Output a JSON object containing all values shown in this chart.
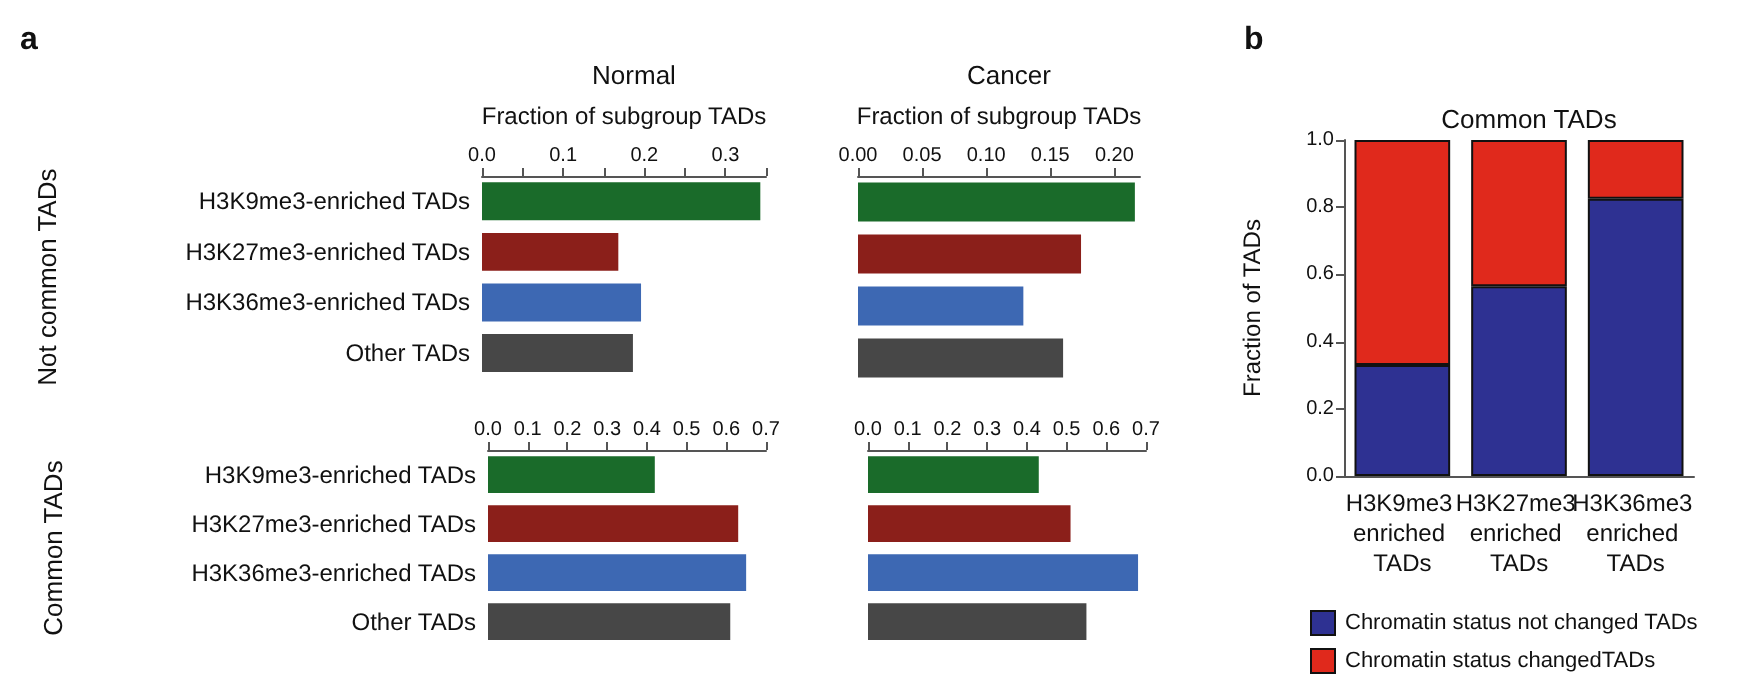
{
  "chart_data": [
    {
      "type": "bar",
      "orientation": "horizontal",
      "title": "Normal",
      "xlabel": "Fraction of subgroup TADs",
      "ylabel": "Not common TADs",
      "annotations": [
        "a"
      ],
      "categories": [
        "H3K9me3-enriched TADs",
        "H3K27me3-enriched TADs",
        "H3K36me3-enriched TADs",
        "Other TADs"
      ],
      "values": [
        0.343,
        0.168,
        0.196,
        0.186
      ],
      "colors": [
        "#1a6b2a",
        "#8b1f1a",
        "#3d68b3",
        "#474747"
      ],
      "xlim": [
        0,
        0.35
      ],
      "xticks": [
        {
          "value": 0,
          "label": "0.0"
        },
        {
          "value": 0.05,
          "label": null
        },
        0.1,
        {
          "value": 0.15,
          "label": null
        },
        0.2,
        {
          "value": 0.25,
          "label": null
        },
        0.3,
        {
          "value": 0.35,
          "label": null
        }
      ],
      "grid": false
    },
    {
      "type": "bar",
      "orientation": "horizontal",
      "title": "Cancer",
      "xlabel": "Fraction of subgroup TADs",
      "tick_labels": "x",
      "categories": [
        "H3K9me3-enriched TADs",
        "H3K27me3-enriched TADs",
        "H3K36me3-enriched TADs",
        "Other TADs"
      ],
      "values": [
        0.216,
        0.174,
        0.129,
        0.16
      ],
      "colors": [
        "#1a6b2a",
        "#8b1f1a",
        "#3d68b3",
        "#474747"
      ],
      "xlim": [
        0,
        0.22
      ],
      "xticks": [
        {
          "value": 0,
          "label": "0.00"
        },
        {
          "value": 0.05,
          "label": "0.05"
        },
        {
          "value": 0.1,
          "label": "0.10"
        },
        {
          "value": 0.15,
          "label": "0.15"
        },
        {
          "value": 0.2,
          "label": "0.20"
        }
      ],
      "grid": false
    },
    {
      "type": "bar",
      "orientation": "horizontal",
      "ylabel": "Common TADs",
      "categories": [
        "H3K9me3-enriched TADs",
        "H3K27me3-enriched TADs",
        "H3K36me3-enriched TADs",
        "Other TADs"
      ],
      "values": [
        0.42,
        0.63,
        0.65,
        0.61
      ],
      "colors": [
        "#1a6b2a",
        "#8b1f1a",
        "#3d68b3",
        "#474747"
      ],
      "xlim": [
        0,
        0.7
      ],
      "xticks": [
        {
          "value": 0,
          "label": "0.0"
        },
        0.1,
        0.2,
        0.3,
        0.4,
        0.5,
        0.6,
        0.7
      ],
      "grid": false
    },
    {
      "type": "bar",
      "orientation": "horizontal",
      "tick_labels": "x",
      "categories": [
        "H3K9me3-enriched TADs",
        "H3K27me3-enriched TADs",
        "H3K36me3-enriched TADs",
        "Other TADs"
      ],
      "values": [
        0.43,
        0.51,
        0.68,
        0.55
      ],
      "colors": [
        "#1a6b2a",
        "#8b1f1a",
        "#3d68b3",
        "#474747"
      ],
      "xlim": [
        0,
        0.7
      ],
      "xticks": [
        {
          "value": 0,
          "label": "0.0"
        },
        0.1,
        0.2,
        0.3,
        0.4,
        0.5,
        0.6,
        0.7
      ],
      "grid": false
    },
    {
      "type": "bar",
      "stacked": true,
      "title": "Common TADs",
      "ylabel": "Fraction of TADs",
      "annotations": [
        "b"
      ],
      "categories": [
        "H3K9me3 enriched TADs",
        "H3K27me3 enriched TADs",
        "H3K36me3 enriched TADs"
      ],
      "series": [
        {
          "name": "Chromatin status not changed TADs",
          "color": "#2e3192",
          "values": [
            0.33,
            0.565,
            0.825
          ]
        },
        {
          "name": "Chromatin status changedTADs",
          "color": "#e0291c",
          "values": [
            0.67,
            0.435,
            0.175
          ]
        }
      ],
      "ylim": [
        0,
        1
      ],
      "yticks": [
        {
          "value": 0,
          "label": "0.0"
        },
        {
          "value": 0.2,
          "label": "0.2"
        },
        {
          "value": 0.4,
          "label": "0.4"
        },
        {
          "value": 0.6,
          "label": "0.6"
        },
        {
          "value": 0.8,
          "label": "0.8"
        },
        {
          "value": 1,
          "label": "1.0"
        }
      ],
      "legend": "bottom",
      "grid": false
    }
  ]
}
